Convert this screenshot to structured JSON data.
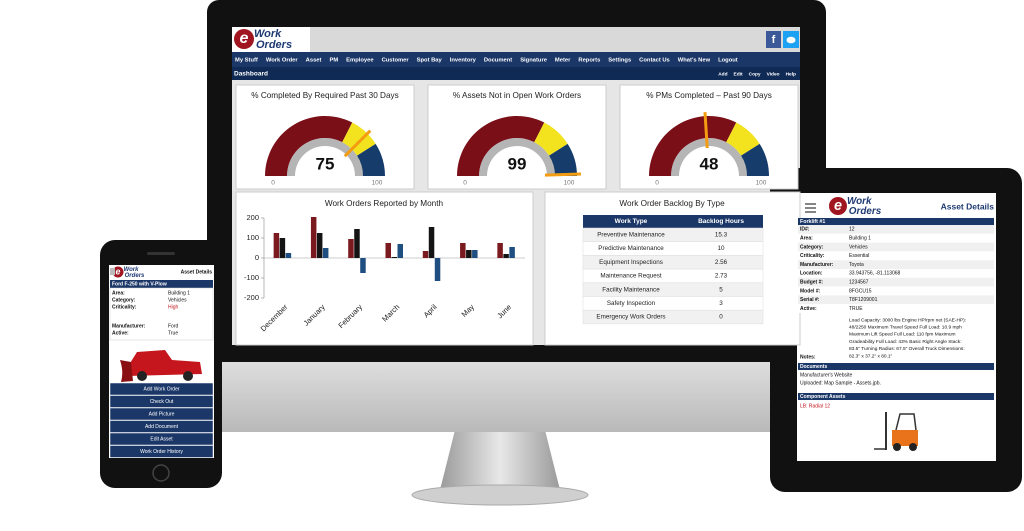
{
  "desktop": {
    "logo": {
      "letter": "e",
      "line1": "Work",
      "line2": "Orders"
    },
    "social_icon": "f",
    "nav": [
      "My Stuff",
      "Work Order",
      "Asset",
      "PM",
      "Employee",
      "Customer",
      "Spot Bay",
      "Inventory",
      "Document",
      "Signature",
      "Meter",
      "Reports",
      "Settings",
      "Contact Us",
      "What's New",
      "Logout"
    ],
    "page_title": "Dashboard",
    "actions": [
      "Add",
      "Edit",
      "Copy",
      "Video",
      "Help"
    ],
    "gauges": [
      {
        "type": "gauge",
        "title": "% Completed By Required Past 30 Days",
        "value": 75,
        "min": 0,
        "max": 100,
        "bands": [
          {
            "to": 65,
            "color": "#7a0f17"
          },
          {
            "to": 82,
            "color": "#f3e31e"
          },
          {
            "to": 100,
            "color": "#163c6b"
          }
        ]
      },
      {
        "type": "gauge",
        "title": "% Assets Not in Open Work Orders",
        "value": 99,
        "min": 0,
        "max": 100,
        "bands": [
          {
            "to": 65,
            "color": "#7a0f17"
          },
          {
            "to": 82,
            "color": "#f3e31e"
          },
          {
            "to": 100,
            "color": "#163c6b"
          }
        ]
      },
      {
        "type": "gauge",
        "title": "% PMs Completed – Past 90 Days",
        "value": 48,
        "min": 0,
        "max": 100,
        "bands": [
          {
            "to": 65,
            "color": "#7a0f17"
          },
          {
            "to": 82,
            "color": "#f3e31e"
          },
          {
            "to": 100,
            "color": "#163c6b"
          }
        ]
      }
    ],
    "bar_chart": {
      "type": "bar",
      "title": "Work Orders Reported by Month",
      "categories": [
        "December",
        "January",
        "February",
        "March",
        "April",
        "May",
        "June"
      ],
      "series": [
        {
          "color": "#7a1a1f",
          "values": [
            125,
            205,
            95,
            75,
            35,
            75,
            75
          ]
        },
        {
          "color": "#141414",
          "values": [
            100,
            125,
            145,
            5,
            155,
            40,
            20
          ]
        },
        {
          "color": "#1f4f80",
          "values": [
            25,
            50,
            -75,
            70,
            -115,
            40,
            55
          ]
        }
      ],
      "ylim": [
        -200,
        200
      ],
      "yticks": [
        -200,
        -100,
        0,
        100,
        200
      ],
      "grid": false
    },
    "backlog": {
      "title": "Work Order Backlog By Type",
      "columns": [
        "Work Type",
        "Backlog Hours"
      ],
      "rows": [
        [
          "Preventive Maintenance",
          15.3
        ],
        [
          "Predictive Maintenance",
          10
        ],
        [
          "Equipment Inspections",
          2.56
        ],
        [
          "Maintenance Request",
          2.73
        ],
        [
          "Facility Maintenance",
          5
        ],
        [
          "Safety Inspection",
          3
        ],
        [
          "Emergency Work Orders",
          0
        ]
      ]
    }
  },
  "phone": {
    "logo": {
      "letter": "e",
      "line1": "Work",
      "line2": "Orders"
    },
    "header": "Asset Details",
    "asset_name": "Ford F-250 with V-Plow",
    "fields": [
      [
        "Area:",
        "Building 1"
      ],
      [
        "Category:",
        "Vehicles"
      ],
      [
        "Criticality:",
        "High"
      ],
      [
        "Manufacturer:",
        "Ford"
      ],
      [
        "Active:",
        "True"
      ]
    ],
    "buttons": [
      "Add Work Order",
      "Check Out",
      "Add Picture",
      "Add Document",
      "Edit Asset",
      "Work Order History"
    ]
  },
  "tablet": {
    "logo": {
      "letter": "e",
      "line1": "Work",
      "line2": "Orders"
    },
    "header": "Asset Details",
    "asset_name": "Forklift #1",
    "fields": [
      [
        "ID#:",
        "12"
      ],
      [
        "Area:",
        "Building 1"
      ],
      [
        "Category:",
        "Vehicles"
      ],
      [
        "Criticality:",
        "Essential"
      ],
      [
        "Manufacturer:",
        "Toyota"
      ],
      [
        "Location:",
        "33.943756, -81.113068"
      ],
      [
        "Budget #:",
        "1234567"
      ],
      [
        "Model #:",
        "8FGCU15"
      ],
      [
        "Serial #:",
        "T8F1209001"
      ],
      [
        "Active:",
        "TRUE"
      ]
    ],
    "notes_label": "Notes:",
    "notes": [
      "Load Capacity: 3000 lbs Engine HP/rpm net (SAE-HP):",
      "48/2250 Maximum Travel Speed Full Load: 10.9 mph",
      "Maximum Lift Speed Full Load: 110 fpm Maximum",
      "Gradeability Full Load: 43% Basic Right Angle Stack:",
      "83.5\" Turning Radius: 67.5\" Overall Truck Dimensions:",
      "82.3\" x 37.2\" x 80.1\""
    ],
    "documents_title": "Documents",
    "documents": [
      "Manufacturer's Website",
      "Uploaded:  Map Sample - Assets.jpb."
    ],
    "components_title": "Component Assets",
    "components": [
      "LB: Radial 12"
    ]
  }
}
